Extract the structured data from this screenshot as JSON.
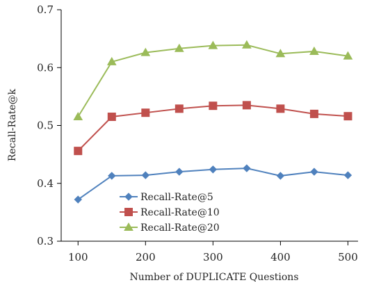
{
  "chart_data": {
    "type": "line",
    "x": [
      100,
      150,
      200,
      250,
      300,
      350,
      400,
      450,
      500
    ],
    "xlabel": "Number of DUPLICATE Questions",
    "ylabel": "Recall-Rate@k",
    "xlim": [
      75,
      515
    ],
    "ylim": [
      0.3,
      0.7
    ],
    "xticks": [
      100,
      200,
      300,
      400,
      500
    ],
    "yticks": [
      0.3,
      0.4,
      0.5,
      0.6,
      0.7
    ],
    "legend_position": "lower-center",
    "grid": false,
    "series": [
      {
        "name": "Recall-Rate@5",
        "color": "#4F81BD",
        "marker": "diamond",
        "values": [
          0.372,
          0.413,
          0.414,
          0.42,
          0.424,
          0.426,
          0.413,
          0.42,
          0.414
        ]
      },
      {
        "name": "Recall-Rate@10",
        "color": "#C0504D",
        "marker": "square",
        "values": [
          0.456,
          0.515,
          0.522,
          0.529,
          0.534,
          0.535,
          0.529,
          0.52,
          0.516
        ]
      },
      {
        "name": "Recall-Rate@20",
        "color": "#9BBB59",
        "marker": "triangle",
        "values": [
          0.515,
          0.61,
          0.626,
          0.633,
          0.638,
          0.639,
          0.624,
          0.628,
          0.62
        ]
      }
    ]
  }
}
